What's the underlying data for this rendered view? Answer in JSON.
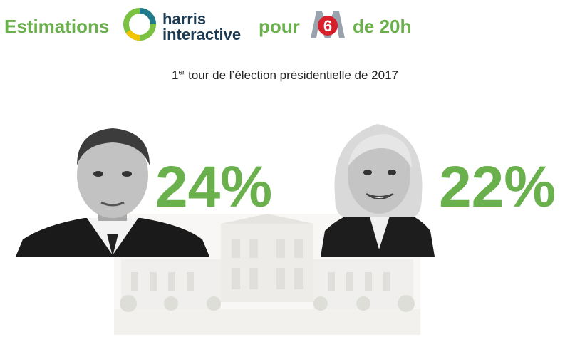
{
  "header": {
    "estimations_label": "Estimations",
    "brand_line1": "harris",
    "brand_line2": "interactive",
    "pour_label": "pour",
    "channel_logo_text": "6",
    "de20h_label": "de 20h"
  },
  "subtitle": {
    "ordinal_number": "1",
    "ordinal_suffix": "er",
    "rest": " tour de l’élection présidentielle de 2017"
  },
  "candidates": [
    {
      "percent_label": "24%"
    },
    {
      "percent_label": "22%"
    }
  ],
  "colors": {
    "accent_green": "#6ab04c",
    "brand_navy": "#1d3b52",
    "m6_red": "#d6202c"
  }
}
